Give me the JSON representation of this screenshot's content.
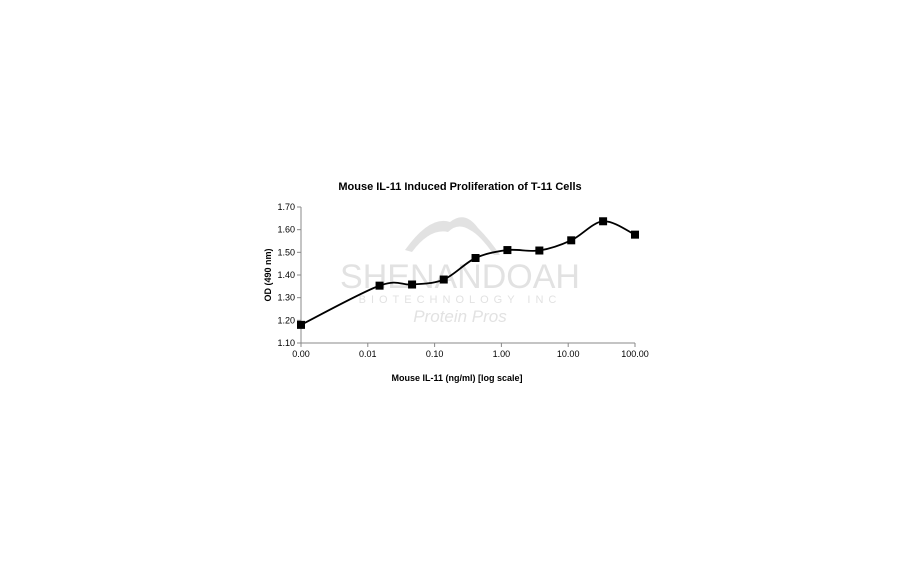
{
  "chart_data": {
    "type": "line",
    "title": "Mouse IL-11 Induced Proliferation of T-11 Cells",
    "xlabel": "Mouse IL-11 (ng/ml) [log scale]",
    "ylabel": "OD (490 nm)",
    "x_scale": "log",
    "xlim": [
      0.001,
      100
    ],
    "ylim": [
      1.1,
      1.7
    ],
    "x_ticks": [
      0.001,
      0.01,
      0.1,
      1,
      10,
      100
    ],
    "x_tick_labels": [
      "0.00",
      "0.01",
      "0.10",
      "1.00",
      "10.00",
      "100.00"
    ],
    "y_ticks": [
      1.1,
      1.2,
      1.3,
      1.4,
      1.5,
      1.6,
      1.7
    ],
    "y_tick_labels": [
      "1.10",
      "1.20",
      "1.30",
      "1.40",
      "1.50",
      "1.60",
      "1.70"
    ],
    "grid": false,
    "series": [
      {
        "name": "OD",
        "marker": "square",
        "smooth": true,
        "color": "#000000",
        "x": [
          0.001,
          0.015,
          0.046,
          0.137,
          0.41,
          1.23,
          3.7,
          11.1,
          33.3,
          100
        ],
        "y": [
          1.18,
          1.353,
          1.358,
          1.38,
          1.475,
          1.51,
          1.508,
          1.553,
          1.637,
          1.578
        ]
      }
    ],
    "watermark": [
      "SHENANDOAH",
      "BIOTECHNOLOGY INC",
      "Protein Pros"
    ]
  }
}
